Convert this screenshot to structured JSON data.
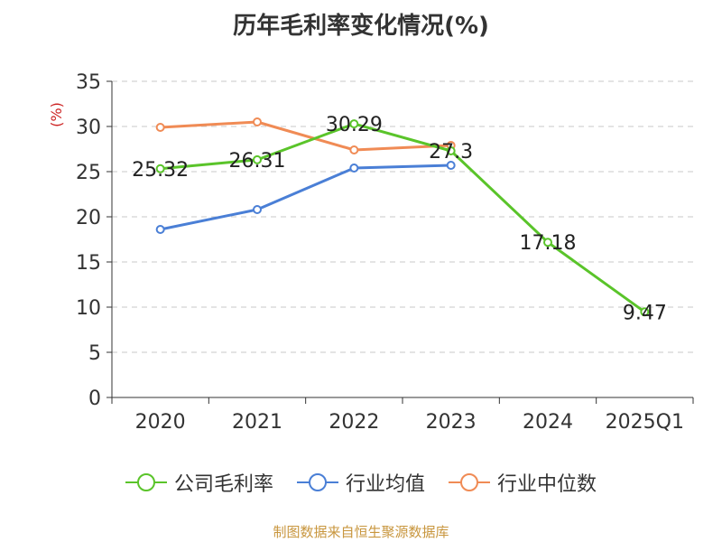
{
  "chart_data": {
    "type": "line",
    "title": "历年毛利率变化情况(%)",
    "ylabel": "(%)",
    "categories": [
      "2020",
      "2021",
      "2022",
      "2023",
      "2024",
      "2025Q1"
    ],
    "ylim": [
      0,
      35
    ],
    "yticks": [
      0,
      5,
      10,
      15,
      20,
      25,
      30,
      35
    ],
    "grid": true,
    "legend_position": "bottom",
    "series": [
      {
        "name": "公司毛利率",
        "color": "#5ac42a",
        "values": [
          25.32,
          26.31,
          30.29,
          27.3,
          17.18,
          9.47
        ],
        "show_labels": true
      },
      {
        "name": "行业均值",
        "color": "#4a7fd6",
        "values": [
          18.6,
          20.8,
          25.4,
          25.7,
          null,
          null
        ],
        "show_labels": false
      },
      {
        "name": "行业中位数",
        "color": "#f08b55",
        "values": [
          29.9,
          30.5,
          27.4,
          27.9,
          null,
          null
        ],
        "show_labels": false
      }
    ]
  },
  "footer": {
    "source": "制图数据来自恒生聚源数据库"
  }
}
